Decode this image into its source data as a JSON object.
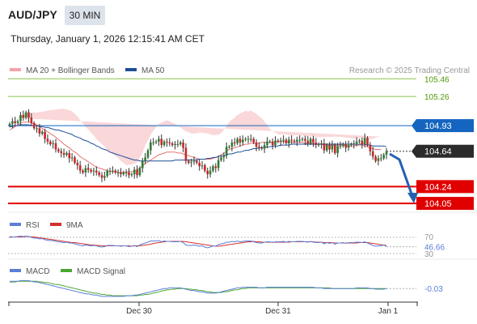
{
  "header": {
    "symbol": "AUD/JPY",
    "timeframe": "30 MIN",
    "datetime": "Thursday, January 1, 2026 12:15:41 AM CET"
  },
  "legend": {
    "ma20_label": "MA 20 + Bollinger Bands",
    "ma50_label": "MA 50",
    "credit": "Research © 2025 Trading Central"
  },
  "colors": {
    "bull": "#2e7d32",
    "bear": "#c62828",
    "ma20": "#e57373",
    "ma50": "#1f4e99",
    "band": "#f8c9cc",
    "resistance": "#8bc34a",
    "pivot": "#1565c0",
    "support": "#e00000",
    "current": "#2b2b2b",
    "arrow": "#2360b0",
    "rsi": "#5b7fd6",
    "rsi_ma": "#d32f2f",
    "macd": "#5b7fd6",
    "macd_signal": "#4aa832"
  },
  "chart_data": [
    {
      "type": "candlestick",
      "x_labels": [
        "Dec 30",
        "Dec 31",
        "Jan 1"
      ],
      "ylim": [
        103.95,
        105.6
      ],
      "levels": [
        {
          "value": 105.46,
          "label": "105.46",
          "kind": "resistance"
        },
        {
          "value": 105.26,
          "label": "105.26",
          "kind": "resistance"
        },
        {
          "value": 104.93,
          "label": "104.93",
          "kind": "pivot"
        },
        {
          "value": 104.64,
          "label": "104.64",
          "kind": "current"
        },
        {
          "value": 104.24,
          "label": "104.24",
          "kind": "support"
        },
        {
          "value": 104.05,
          "label": "104.05",
          "kind": "support"
        }
      ],
      "close": [
        104.95,
        104.98,
        104.96,
        104.98,
        105.05,
        105.02,
        105.08,
        105.02,
        104.96,
        104.9,
        104.9,
        104.84,
        104.86,
        104.78,
        104.75,
        104.72,
        104.73,
        104.66,
        104.64,
        104.62,
        104.6,
        104.62,
        104.56,
        104.57,
        104.51,
        104.48,
        104.42,
        104.4,
        104.45,
        104.43,
        104.41,
        104.42,
        104.4,
        104.37,
        104.34,
        104.36,
        104.42,
        104.42,
        104.42,
        104.4,
        104.4,
        104.38,
        104.4,
        104.4,
        104.37,
        104.38,
        104.43,
        104.37,
        104.45,
        104.53,
        104.57,
        104.65,
        104.74,
        104.74,
        104.75,
        104.78,
        104.71,
        104.75,
        104.74,
        104.73,
        104.71,
        104.72,
        104.72,
        104.74,
        104.68,
        104.53,
        104.51,
        104.52,
        104.53,
        104.51,
        104.47,
        104.48,
        104.42,
        104.38,
        104.42,
        104.47,
        104.45,
        104.54,
        104.57,
        104.59,
        104.69,
        104.69,
        104.74,
        104.73,
        104.78,
        104.74,
        104.77,
        104.78,
        104.78,
        104.78,
        104.74,
        104.69,
        104.68,
        104.67,
        104.71,
        104.75,
        104.75,
        104.71,
        104.76,
        104.75,
        104.76,
        104.77,
        104.73,
        104.77,
        104.76,
        104.75,
        104.77,
        104.77,
        104.78,
        104.76,
        104.73,
        104.78,
        104.74,
        104.71,
        104.72,
        104.73,
        104.65,
        104.71,
        104.66,
        104.71,
        104.62,
        104.7,
        104.7,
        104.72,
        104.68,
        104.71,
        104.72,
        104.73,
        104.75,
        104.76,
        104.72,
        104.79,
        104.71,
        104.64,
        104.58,
        104.53,
        104.56,
        104.56,
        104.6,
        104.64
      ],
      "ma20": [
        104.88,
        104.9,
        104.92,
        104.94,
        104.96,
        104.97,
        104.97,
        104.97,
        104.96,
        104.95,
        104.94,
        104.92,
        104.9,
        104.88,
        104.86,
        104.84,
        104.82,
        104.8,
        104.77,
        104.75,
        104.72,
        104.7,
        104.68,
        104.65,
        104.63,
        104.61,
        104.58,
        104.56,
        104.54,
        104.52,
        104.5,
        104.48,
        104.46,
        104.45,
        104.44,
        104.43,
        104.42,
        104.41,
        104.41,
        104.41,
        104.4,
        104.4,
        104.4,
        104.4,
        104.41,
        104.41,
        104.42,
        104.43,
        104.45,
        104.47,
        104.5,
        104.52,
        104.54,
        104.56,
        104.58,
        104.6,
        104.61,
        104.62,
        104.63,
        104.63,
        104.63,
        104.63,
        104.62,
        104.62,
        104.61,
        104.6,
        104.59,
        104.58,
        104.57,
        104.56,
        104.55,
        104.55,
        104.55,
        104.55,
        104.55,
        104.56,
        104.57,
        104.58,
        104.6,
        104.62,
        104.64,
        104.66,
        104.67,
        104.68,
        104.69,
        104.7,
        104.71,
        104.72,
        104.72,
        104.73,
        104.73,
        104.73,
        104.73,
        104.74,
        104.74,
        104.74,
        104.74,
        104.74,
        104.75,
        104.75,
        104.75,
        104.75,
        104.75,
        104.74,
        104.74,
        104.74,
        104.74,
        104.74,
        104.74,
        104.73,
        104.73,
        104.73,
        104.73,
        104.72,
        104.72,
        104.72,
        104.71,
        104.71,
        104.71,
        104.71,
        104.71,
        104.71,
        104.71,
        104.71,
        104.7,
        104.7,
        104.7,
        104.7,
        104.71,
        104.71,
        104.71,
        104.7,
        104.69,
        104.68,
        104.67,
        104.66,
        104.66,
        104.66
      ],
      "ma50": [
        104.92,
        104.92,
        104.93,
        104.93,
        104.94,
        104.94,
        104.94,
        104.94,
        104.93,
        104.93,
        104.93,
        104.92,
        104.92,
        104.91,
        104.91,
        104.9,
        104.89,
        104.88,
        104.88,
        104.87,
        104.86,
        104.85,
        104.84,
        104.83,
        104.81,
        104.8,
        104.79,
        104.77,
        104.76,
        104.75,
        104.73,
        104.72,
        104.7,
        104.69,
        104.67,
        104.66,
        104.65,
        104.63,
        104.62,
        104.61,
        104.6,
        104.59,
        104.58,
        104.57,
        104.56,
        104.55,
        104.54,
        104.54,
        104.53,
        104.53,
        104.53,
        104.53,
        104.53,
        104.53,
        104.53,
        104.53,
        104.53,
        104.53,
        104.53,
        104.53,
        104.53,
        104.54,
        104.54,
        104.54,
        104.54,
        104.54,
        104.54,
        104.54,
        104.54,
        104.54,
        104.55,
        104.55,
        104.55,
        104.56,
        104.56,
        104.57,
        104.57,
        104.58,
        104.59,
        104.59,
        104.6,
        104.61,
        104.61,
        104.62,
        104.63,
        104.63,
        104.64,
        104.65,
        104.65,
        104.66,
        104.67,
        104.67,
        104.68,
        104.68,
        104.68,
        104.69,
        104.69,
        104.7,
        104.7,
        104.7,
        104.71,
        104.71,
        104.71,
        104.71,
        104.72,
        104.72,
        104.72,
        104.72,
        104.72,
        104.72,
        104.72,
        104.72,
        104.72,
        104.72,
        104.72,
        104.72,
        104.72,
        104.72,
        104.72,
        104.72,
        104.72,
        104.72,
        104.72,
        104.72,
        104.72,
        104.72,
        104.72,
        104.72,
        104.72,
        104.72,
        104.72,
        104.72,
        104.71,
        104.71,
        104.7,
        104.7,
        104.7,
        104.7,
        104.7,
        104.69
      ]
    },
    {
      "type": "line",
      "title": "RSI",
      "levels": [
        70,
        46.66,
        30
      ],
      "legend": [
        "RSI",
        "9MA"
      ],
      "current": 46.66,
      "ylim": [
        20,
        80
      ],
      "rsi": [
        72,
        71,
        71,
        72,
        73,
        72,
        73,
        72,
        70,
        68,
        68,
        66,
        67,
        64,
        63,
        62,
        62,
        60,
        59,
        58,
        57,
        58,
        56,
        56,
        54,
        52,
        50,
        49,
        51,
        50,
        49,
        50,
        49,
        47,
        46,
        47,
        50,
        50,
        50,
        49,
        49,
        48,
        49,
        49,
        47,
        48,
        50,
        47,
        51,
        54,
        56,
        58,
        61,
        61,
        61,
        62,
        59,
        61,
        60,
        60,
        59,
        59,
        59,
        60,
        57,
        51,
        50,
        50,
        51,
        50,
        48,
        49,
        46,
        44,
        46,
        49,
        48,
        52,
        54,
        55,
        58,
        58,
        60,
        59,
        61,
        59,
        60,
        61,
        61,
        61,
        59,
        57,
        56,
        56,
        58,
        59,
        59,
        57,
        59,
        59,
        59,
        60,
        58,
        60,
        59,
        59,
        60,
        60,
        60,
        59,
        58,
        60,
        58,
        57,
        57,
        58,
        54,
        57,
        55,
        57,
        53,
        56,
        56,
        57,
        55,
        57,
        57,
        57,
        58,
        58,
        57,
        59,
        56,
        53,
        50,
        48,
        49,
        49,
        51,
        47
      ],
      "rsi_ma": [
        70,
        71,
        71,
        71,
        71,
        71,
        72,
        72,
        71,
        71,
        70,
        69,
        68,
        67,
        66,
        65,
        64,
        63,
        62,
        61,
        60,
        59,
        58,
        57,
        57,
        56,
        55,
        54,
        53,
        52,
        51,
        51,
        50,
        50,
        49,
        49,
        49,
        49,
        49,
        49,
        49,
        49,
        49,
        49,
        49,
        48,
        49,
        49,
        49,
        50,
        51,
        52,
        53,
        55,
        56,
        57,
        58,
        59,
        60,
        60,
        60,
        60,
        60,
        60,
        60,
        59,
        58,
        57,
        56,
        55,
        54,
        53,
        52,
        51,
        50,
        49,
        48,
        48,
        49,
        50,
        51,
        52,
        53,
        54,
        55,
        56,
        57,
        58,
        59,
        59,
        60,
        59,
        59,
        58,
        58,
        58,
        58,
        58,
        58,
        58,
        58,
        58,
        58,
        58,
        59,
        59,
        59,
        59,
        59,
        59,
        59,
        59,
        59,
        58,
        58,
        58,
        57,
        57,
        57,
        57,
        56,
        56,
        56,
        56,
        56,
        56,
        56,
        56,
        56,
        57,
        57,
        57,
        57,
        56,
        55,
        54,
        53,
        52,
        51,
        50
      ]
    },
    {
      "type": "line",
      "title": "MACD",
      "legend": [
        "MACD",
        "MACD Signal"
      ],
      "current": -0.03,
      "current_label": "-0.03",
      "ylim": [
        -0.2,
        0.12
      ],
      "macd": [
        0.08,
        0.08,
        0.08,
        0.08,
        0.09,
        0.09,
        0.09,
        0.09,
        0.08,
        0.07,
        0.07,
        0.06,
        0.05,
        0.04,
        0.03,
        0.02,
        0.01,
        0.0,
        -0.01,
        -0.02,
        -0.03,
        -0.04,
        -0.05,
        -0.06,
        -0.07,
        -0.08,
        -0.09,
        -0.1,
        -0.11,
        -0.11,
        -0.12,
        -0.13,
        -0.13,
        -0.14,
        -0.15,
        -0.15,
        -0.15,
        -0.15,
        -0.15,
        -0.15,
        -0.15,
        -0.15,
        -0.15,
        -0.14,
        -0.14,
        -0.14,
        -0.13,
        -0.13,
        -0.12,
        -0.11,
        -0.1,
        -0.09,
        -0.08,
        -0.07,
        -0.06,
        -0.05,
        -0.04,
        -0.03,
        -0.03,
        -0.02,
        -0.02,
        -0.02,
        -0.02,
        -0.02,
        -0.03,
        -0.04,
        -0.05,
        -0.06,
        -0.06,
        -0.07,
        -0.08,
        -0.08,
        -0.09,
        -0.1,
        -0.1,
        -0.1,
        -0.1,
        -0.09,
        -0.08,
        -0.07,
        -0.06,
        -0.05,
        -0.04,
        -0.03,
        -0.02,
        -0.02,
        -0.01,
        -0.01,
        -0.01,
        -0.01,
        -0.01,
        -0.01,
        -0.02,
        -0.02,
        -0.02,
        -0.01,
        -0.01,
        -0.01,
        -0.01,
        -0.01,
        -0.01,
        -0.01,
        -0.01,
        -0.01,
        -0.01,
        -0.01,
        -0.01,
        -0.01,
        -0.01,
        -0.01,
        -0.01,
        -0.01,
        -0.01,
        -0.02,
        -0.02,
        -0.02,
        -0.03,
        -0.03,
        -0.03,
        -0.03,
        -0.03,
        -0.03,
        -0.03,
        -0.03,
        -0.03,
        -0.03,
        -0.03,
        -0.03,
        -0.02,
        -0.02,
        -0.02,
        -0.02,
        -0.02,
        -0.03,
        -0.03,
        -0.04,
        -0.04,
        -0.04,
        -0.04,
        -0.03
      ],
      "signal": [
        0.07,
        0.07,
        0.07,
        0.08,
        0.08,
        0.08,
        0.08,
        0.08,
        0.08,
        0.08,
        0.08,
        0.07,
        0.07,
        0.06,
        0.06,
        0.05,
        0.04,
        0.03,
        0.03,
        0.02,
        0.01,
        0.0,
        -0.01,
        -0.02,
        -0.03,
        -0.04,
        -0.05,
        -0.06,
        -0.07,
        -0.08,
        -0.09,
        -0.1,
        -0.1,
        -0.11,
        -0.12,
        -0.12,
        -0.13,
        -0.13,
        -0.14,
        -0.14,
        -0.14,
        -0.14,
        -0.14,
        -0.14,
        -0.14,
        -0.14,
        -0.14,
        -0.14,
        -0.13,
        -0.13,
        -0.12,
        -0.12,
        -0.11,
        -0.1,
        -0.09,
        -0.08,
        -0.07,
        -0.06,
        -0.05,
        -0.05,
        -0.04,
        -0.04,
        -0.03,
        -0.03,
        -0.03,
        -0.03,
        -0.04,
        -0.04,
        -0.05,
        -0.05,
        -0.06,
        -0.06,
        -0.07,
        -0.08,
        -0.08,
        -0.09,
        -0.09,
        -0.09,
        -0.09,
        -0.08,
        -0.08,
        -0.07,
        -0.06,
        -0.05,
        -0.05,
        -0.04,
        -0.03,
        -0.03,
        -0.02,
        -0.02,
        -0.02,
        -0.02,
        -0.02,
        -0.02,
        -0.02,
        -0.02,
        -0.02,
        -0.02,
        -0.02,
        -0.02,
        -0.02,
        -0.02,
        -0.02,
        -0.02,
        -0.02,
        -0.02,
        -0.02,
        -0.02,
        -0.02,
        -0.02,
        -0.02,
        -0.02,
        -0.02,
        -0.02,
        -0.02,
        -0.02,
        -0.02,
        -0.02,
        -0.02,
        -0.03,
        -0.03,
        -0.03,
        -0.03,
        -0.03,
        -0.03,
        -0.03,
        -0.03,
        -0.03,
        -0.03,
        -0.03,
        -0.03,
        -0.03,
        -0.03,
        -0.03,
        -0.03,
        -0.03,
        -0.03,
        -0.03,
        -0.03,
        -0.03
      ]
    }
  ]
}
